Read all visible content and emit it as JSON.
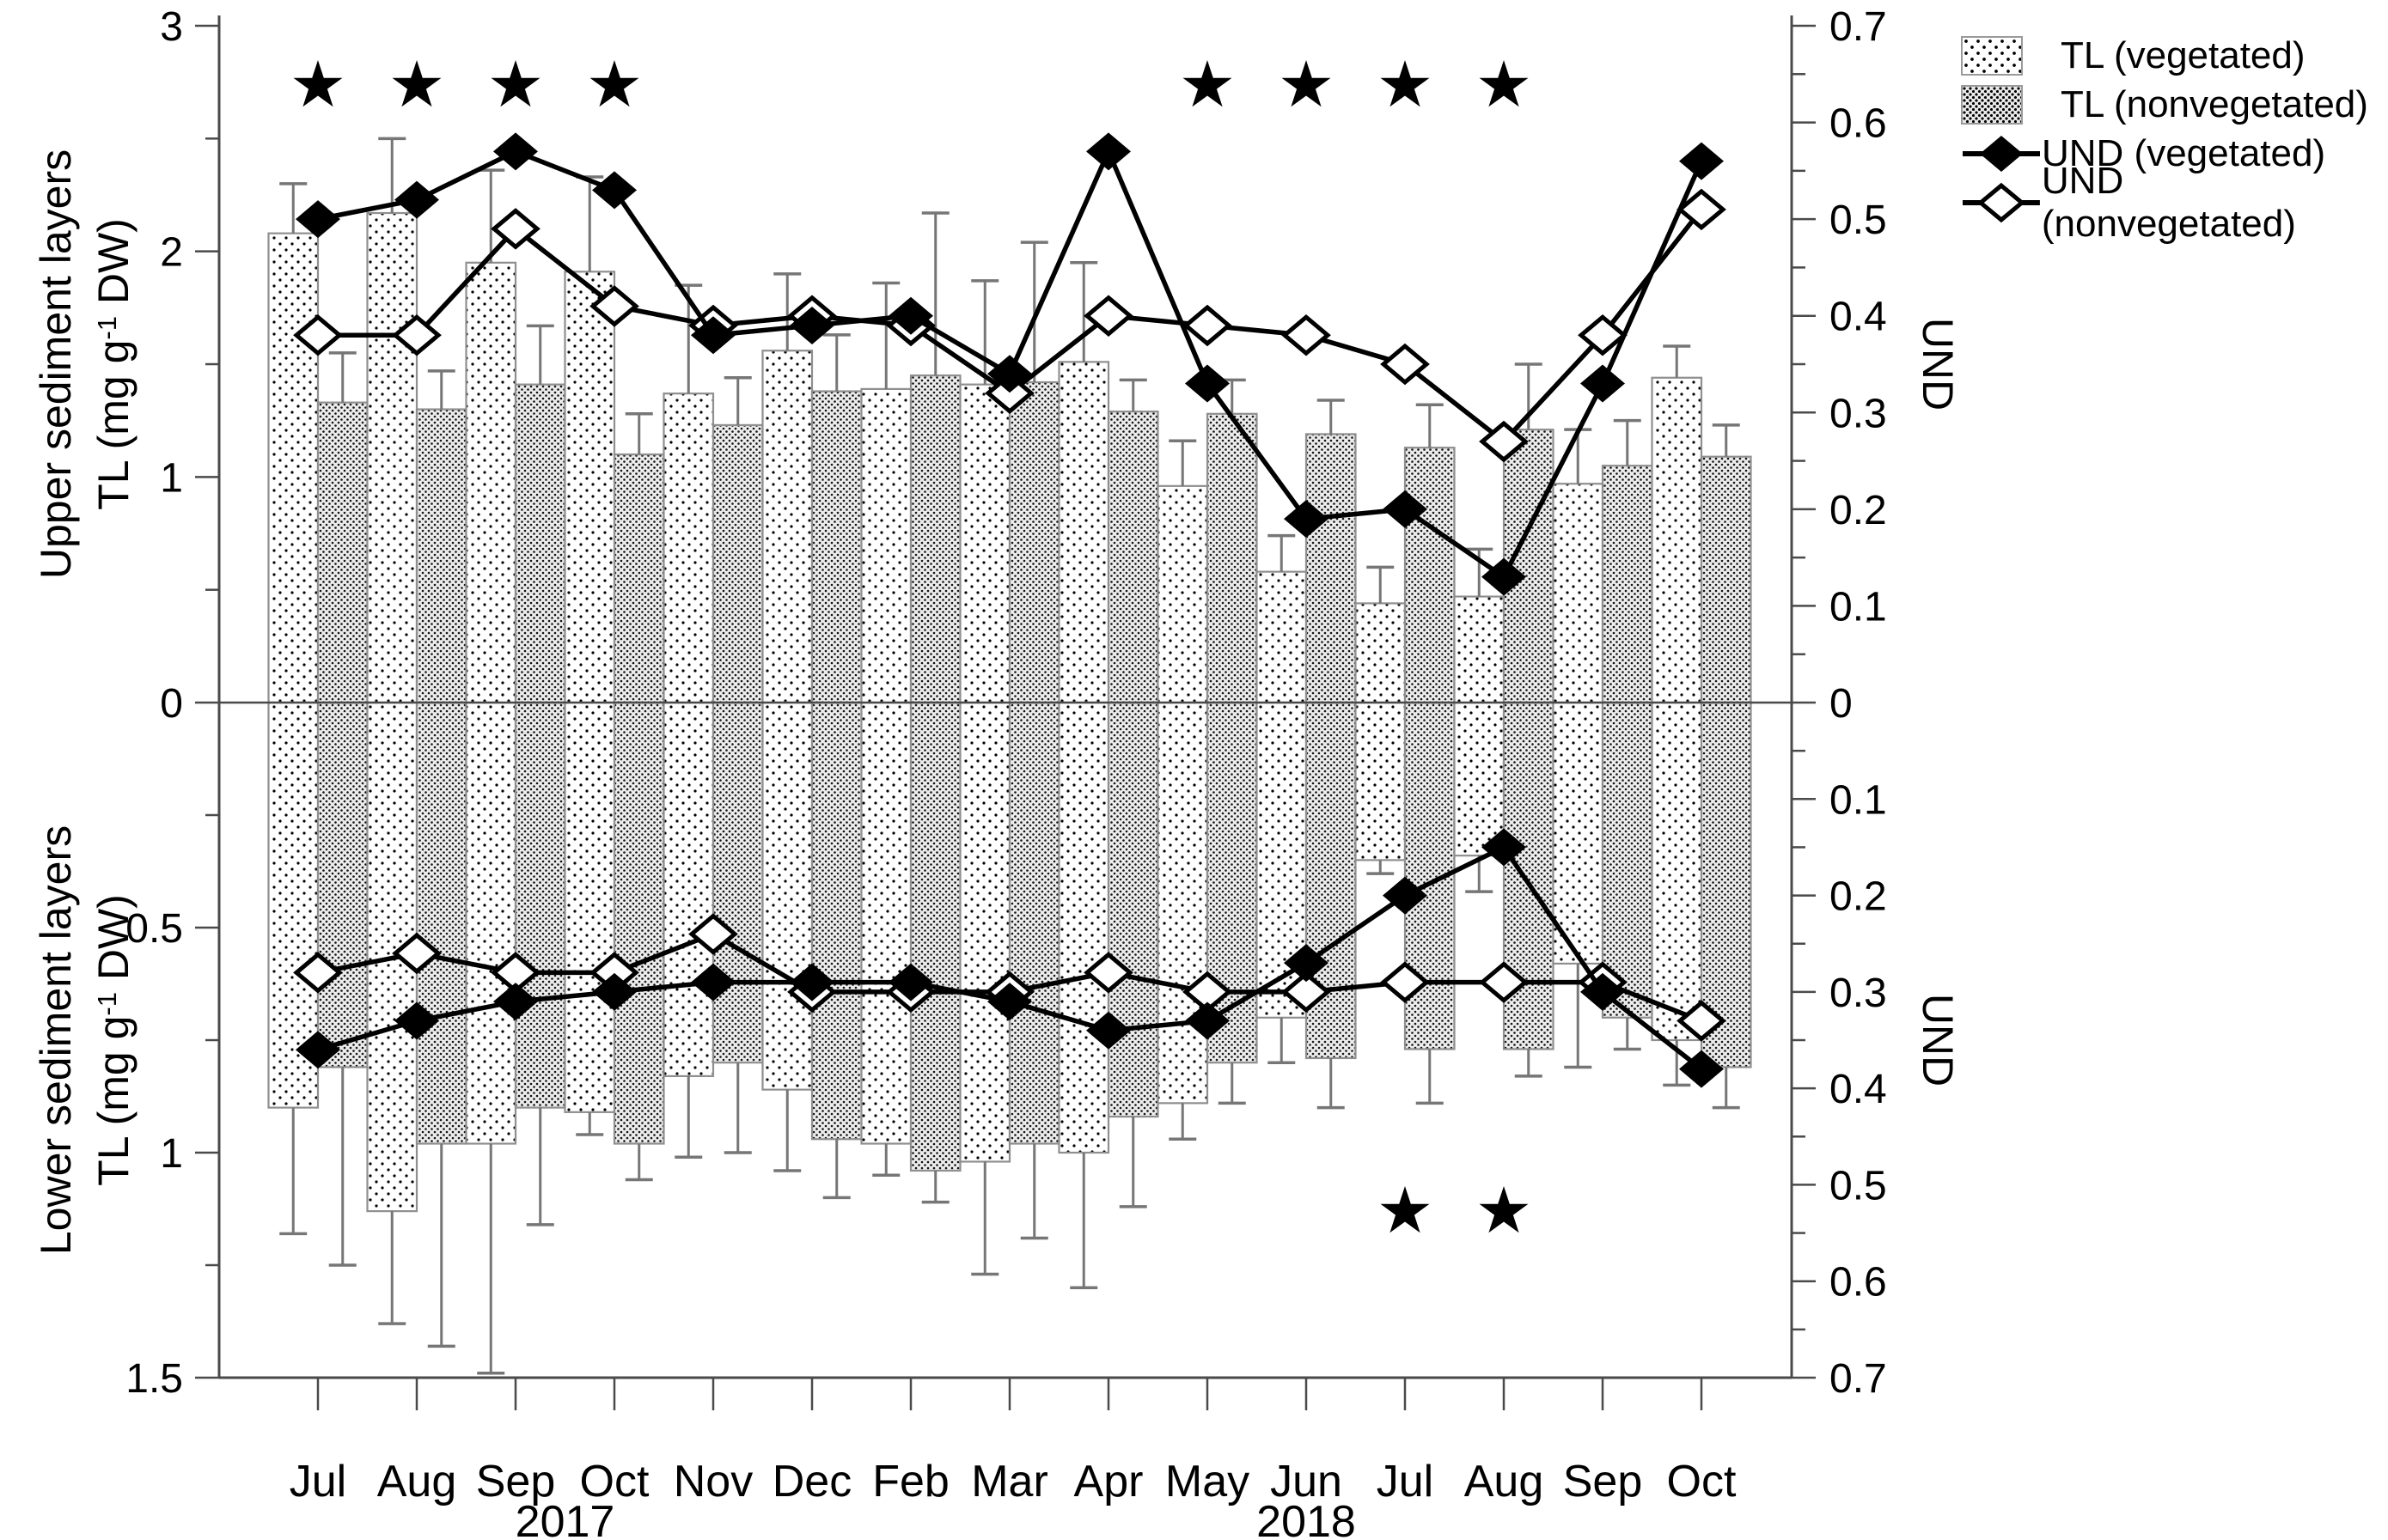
{
  "chart_data": {
    "type": "bar",
    "description": "Mirrored dual-panel chart: TL bars (left axes) and UND diamond-marker lines (right axes) for vegetated vs nonvegetated sites, upper and lower sediment layers, Jul 2017 - Oct 2018",
    "categories": [
      "Jul",
      "Aug",
      "Sep",
      "Oct",
      "Nov",
      "Dec",
      "Feb",
      "Mar",
      "Apr",
      "May",
      "Jun",
      "Jul",
      "Aug",
      "Sep",
      "Oct"
    ],
    "year_labels": [
      {
        "text": "2017",
        "from_index": 0,
        "to_index": 5
      },
      {
        "text": "2018",
        "from_index": 6,
        "to_index": 14
      }
    ],
    "legend": {
      "position": "top-right",
      "entries": [
        {
          "label": "TL (vegetated)",
          "swatch": "sparse-dotted-bar"
        },
        {
          "label": "TL (nonvegetated)",
          "swatch": "dense-dotted-gray-bar"
        },
        {
          "label": "UND (vegetated)",
          "swatch": "filled-diamond-on-line"
        },
        {
          "label": "UND (nonvegetated)",
          "swatch": "open-diamond-on-line"
        }
      ]
    },
    "panels": [
      {
        "id": "upper",
        "title_line1": "Upper sediment layers",
        "title_tl": {
          "pre": "TL (mg g",
          "sup": "-1",
          "post": " DW)"
        },
        "left_axis": {
          "min": 0,
          "max": 3,
          "major_ticks": [
            {
              "v": 3,
              "label": "3"
            },
            {
              "v": 2,
              "label": "2"
            },
            {
              "v": 1,
              "label": "1"
            },
            {
              "v": 0,
              "label": "0"
            }
          ],
          "minor_ticks": [
            0.5,
            1.5,
            2.5
          ]
        },
        "right_axis": {
          "label": "UND",
          "min": 0,
          "max": 0.7,
          "minor_step": 0.05,
          "major_ticks": [
            {
              "v": 0.7,
              "label": "0.7"
            },
            {
              "v": 0.6,
              "label": "0.6"
            },
            {
              "v": 0.5,
              "label": "0.5"
            },
            {
              "v": 0.4,
              "label": "0.4"
            },
            {
              "v": 0.3,
              "label": "0.3"
            },
            {
              "v": 0.2,
              "label": "0.2"
            },
            {
              "v": 0.1,
              "label": "0.1"
            },
            {
              "v": 0,
              "label": "0"
            }
          ]
        },
        "series": {
          "tl_vegetated": {
            "values": [
              2.08,
              2.17,
              1.95,
              1.91,
              1.37,
              1.56,
              1.39,
              1.41,
              1.51,
              0.96,
              0.58,
              0.44,
              0.47,
              0.97,
              1.44
            ],
            "err_to": [
              2.3,
              2.5,
              2.36,
              2.33,
              1.85,
              1.9,
              1.86,
              1.87,
              1.95,
              1.16,
              0.74,
              0.6,
              0.68,
              1.21,
              1.58
            ]
          },
          "tl_nonvegetated": {
            "values": [
              1.33,
              1.3,
              1.41,
              1.1,
              1.23,
              1.38,
              1.45,
              1.42,
              1.29,
              1.28,
              1.19,
              1.13,
              1.21,
              1.05,
              1.09
            ],
            "err_to": [
              1.55,
              1.47,
              1.67,
              1.28,
              1.44,
              1.63,
              2.17,
              2.04,
              1.43,
              1.43,
              1.34,
              1.32,
              1.5,
              1.25,
              1.23
            ]
          },
          "und_vegetated": {
            "values": [
              0.5,
              0.52,
              0.57,
              0.53,
              0.38,
              0.39,
              0.4,
              0.34,
              0.57,
              0.33,
              0.19,
              0.2,
              0.13,
              0.33,
              0.56
            ]
          },
          "und_nonvegetated": {
            "values": [
              0.38,
              0.38,
              0.49,
              0.41,
              0.39,
              0.4,
              0.39,
              0.32,
              0.4,
              0.39,
              0.38,
              0.35,
              0.27,
              0.38,
              0.51
            ]
          }
        },
        "star_month_indices": [
          0,
          1,
          2,
          3,
          9,
          10,
          11,
          12
        ]
      },
      {
        "id": "lower",
        "title_line1": "Lower sediment layers",
        "title_tl": {
          "pre": "TL (mg g",
          "sup": "-1",
          "post": " DW)"
        },
        "left_axis": {
          "min": 0,
          "max": 1.5,
          "major_ticks": [
            {
              "v": 0.5,
              "label": "0.5"
            },
            {
              "v": 1,
              "label": "1"
            },
            {
              "v": 1.5,
              "label": "1.5"
            }
          ],
          "minor_ticks": [
            0.25,
            0.75,
            1.25
          ]
        },
        "right_axis": {
          "label": "UND",
          "min": 0,
          "max": 0.7,
          "minor_step": 0.05,
          "major_ticks": [
            {
              "v": 0.1,
              "label": "0.1"
            },
            {
              "v": 0.2,
              "label": "0.2"
            },
            {
              "v": 0.3,
              "label": "0.3"
            },
            {
              "v": 0.4,
              "label": "0.4"
            },
            {
              "v": 0.5,
              "label": "0.5"
            },
            {
              "v": 0.6,
              "label": "0.6"
            },
            {
              "v": 0.7,
              "label": "0.7"
            }
          ]
        },
        "series": {
          "tl_vegetated": {
            "values": [
              0.9,
              1.13,
              0.98,
              0.91,
              0.83,
              0.86,
              0.98,
              1.02,
              1.0,
              0.89,
              0.7,
              0.35,
              0.34,
              0.58,
              0.75
            ],
            "err_to": [
              1.18,
              1.38,
              1.49,
              0.96,
              1.01,
              1.04,
              1.05,
              1.27,
              1.3,
              0.97,
              0.8,
              0.38,
              0.42,
              0.81,
              0.85
            ]
          },
          "tl_nonvegetated": {
            "values": [
              0.81,
              0.98,
              0.9,
              0.98,
              0.8,
              0.97,
              1.04,
              0.98,
              0.92,
              0.8,
              0.79,
              0.77,
              0.77,
              0.7,
              0.81
            ],
            "err_to": [
              1.25,
              1.43,
              1.16,
              1.06,
              1.0,
              1.1,
              1.11,
              1.19,
              1.12,
              0.89,
              0.9,
              0.89,
              0.83,
              0.77,
              0.9
            ]
          },
          "und_vegetated": {
            "values": [
              0.36,
              0.33,
              0.31,
              0.3,
              0.29,
              0.29,
              0.29,
              0.31,
              0.34,
              0.33,
              0.27,
              0.2,
              0.15,
              0.3,
              0.38
            ]
          },
          "und_nonvegetated": {
            "values": [
              0.28,
              0.26,
              0.28,
              0.28,
              0.24,
              0.3,
              0.3,
              0.3,
              0.28,
              0.3,
              0.3,
              0.29,
              0.29,
              0.29,
              0.33
            ]
          }
        },
        "star_month_indices": [
          11,
          12
        ]
      }
    ]
  }
}
